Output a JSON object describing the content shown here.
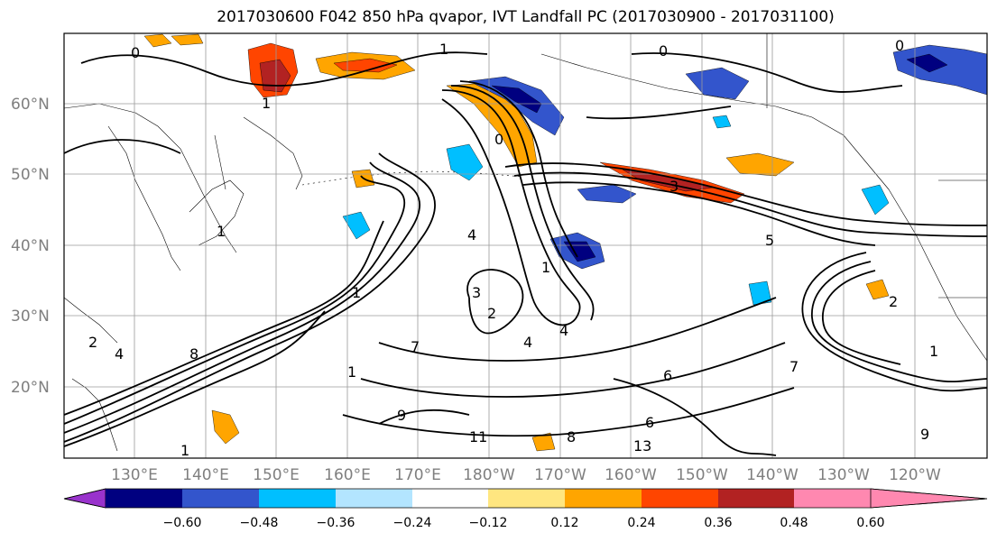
{
  "title": "2017030600 F042 850 hPa qvapor, IVT Landfall PC (2017030900 - 2017031100)",
  "lat_labels": [
    "60°N",
    "50°N",
    "40°N",
    "30°N",
    "20°N"
  ],
  "lon_labels": [
    "130°E",
    "140°E",
    "150°E",
    "160°E",
    "170°E",
    "180°W",
    "170°W",
    "160°W",
    "150°W",
    "140°W",
    "130°W",
    "120°W"
  ],
  "colorbar": {
    "colors": [
      "#9933cc",
      "#000080",
      "#3355cc",
      "#00bfff",
      "#b3e5ff",
      "#ffffff",
      "#ffe680",
      "#ffa500",
      "#ff4500",
      "#b22222",
      "#ff88b0"
    ],
    "tick_labels": [
      "−0.60",
      "−0.48",
      "−0.36",
      "−0.24",
      "−0.12",
      "0.12",
      "0.24",
      "0.36",
      "0.48",
      "0.60"
    ]
  },
  "contour_labels": [
    "0",
    "1",
    "1",
    "0",
    "1",
    "4",
    "1",
    "3",
    "2",
    "4",
    "3",
    "4",
    "5",
    "2",
    "1",
    "7",
    "8",
    "7",
    "11",
    "1",
    "6",
    "4",
    "6",
    "9",
    "8",
    "13",
    "9",
    "1",
    "1",
    "2",
    "0",
    "0"
  ]
}
